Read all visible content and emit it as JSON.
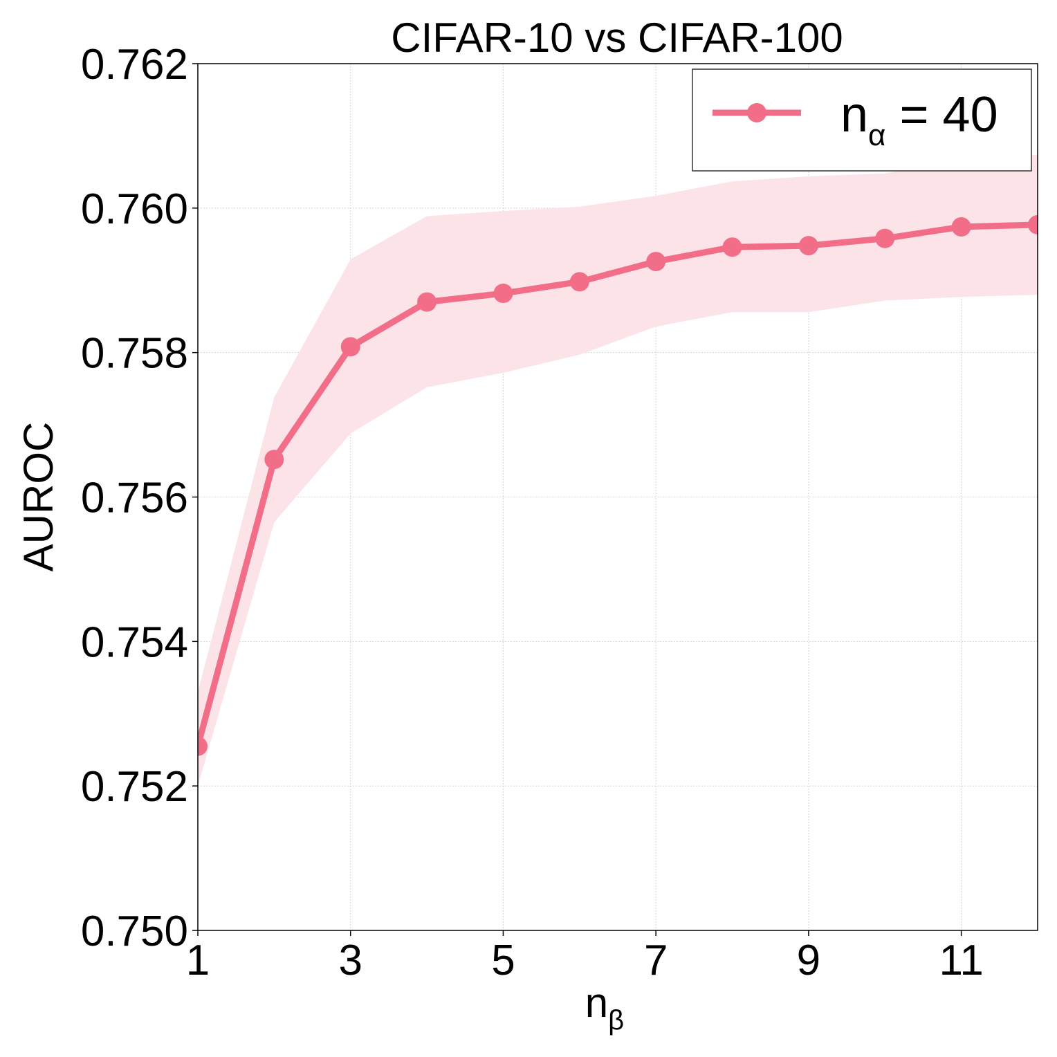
{
  "chart_data": {
    "type": "line",
    "title": "CIFAR-10 vs CIFAR-100",
    "xlabel": {
      "base": "n",
      "sub": "β"
    },
    "ylabel": "AUROC",
    "xlim": [
      1,
      12
    ],
    "ylim": [
      0.75,
      0.762
    ],
    "xticks": [
      1,
      3,
      5,
      7,
      9,
      11
    ],
    "xtick_labels": [
      "1",
      "3",
      "5",
      "7",
      "9",
      "11"
    ],
    "yticks": [
      0.75,
      0.752,
      0.754,
      0.756,
      0.758,
      0.76,
      0.762
    ],
    "ytick_labels": [
      "0.750",
      "0.752",
      "0.754",
      "0.756",
      "0.758",
      "0.760",
      "0.762"
    ],
    "grid": true,
    "legend_position": "top-right",
    "series": [
      {
        "name": "n_α = 40",
        "legend": {
          "base": "n",
          "sub": "α",
          "rest": " = 40"
        },
        "color": "#f26d88",
        "band_color": "#fbe3e8",
        "x": [
          1,
          2,
          3,
          4,
          5,
          6,
          7,
          8,
          9,
          10,
          11,
          12
        ],
        "y": [
          0.75255,
          0.75652,
          0.75808,
          0.7587,
          0.75882,
          0.75898,
          0.75926,
          0.75946,
          0.75948,
          0.75958,
          0.75974,
          0.75977
        ],
        "lower": [
          0.752,
          0.75565,
          0.75688,
          0.75752,
          0.75772,
          0.75797,
          0.75836,
          0.75856,
          0.75856,
          0.75872,
          0.75877,
          0.7588
        ],
        "upper": [
          0.7533,
          0.75738,
          0.75929,
          0.75989,
          0.75996,
          0.76002,
          0.76017,
          0.76037,
          0.76044,
          0.76048,
          0.76068,
          0.76074
        ]
      }
    ]
  }
}
